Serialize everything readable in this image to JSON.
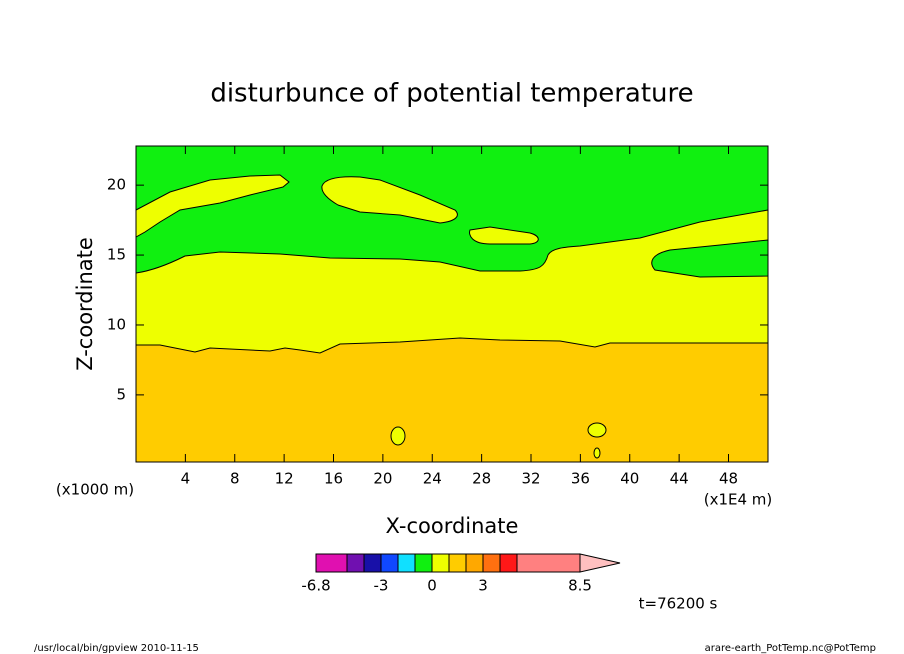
{
  "chart_data": {
    "type": "contour",
    "title": "disturbunce of potential temperature",
    "xlabel": "X-coordinate",
    "ylabel": "Z-coordinate",
    "xunit": "(x1000 m)",
    "xscale_note": "(x1E4 m)",
    "time_label": "t=76200 s",
    "xlim": [
      0,
      51.2
    ],
    "xticks": [
      4,
      8,
      12,
      16,
      20,
      24,
      28,
      32,
      36,
      40,
      44,
      48
    ],
    "ylim": [
      0.2,
      22.8
    ],
    "yticks": [
      5,
      10,
      15,
      20
    ],
    "colorbar": {
      "levels": [
        -6.8,
        -3,
        0,
        3,
        8.5
      ],
      "colors": [
        "#e010b0",
        "#7010b0",
        "#1810a8",
        "#1048ff",
        "#10e0ff",
        "#10f010",
        "#eeff00",
        "#ffcc00",
        "#ffa800",
        "#ff7010",
        "#ff1818",
        "#ff8080"
      ],
      "extend_color": "#ffc0c0"
    },
    "footer_left": "/usr/local/bin/gpview  2010-11-15",
    "footer_right": "arare-earth_PotTemp.nc@PotTemp"
  }
}
